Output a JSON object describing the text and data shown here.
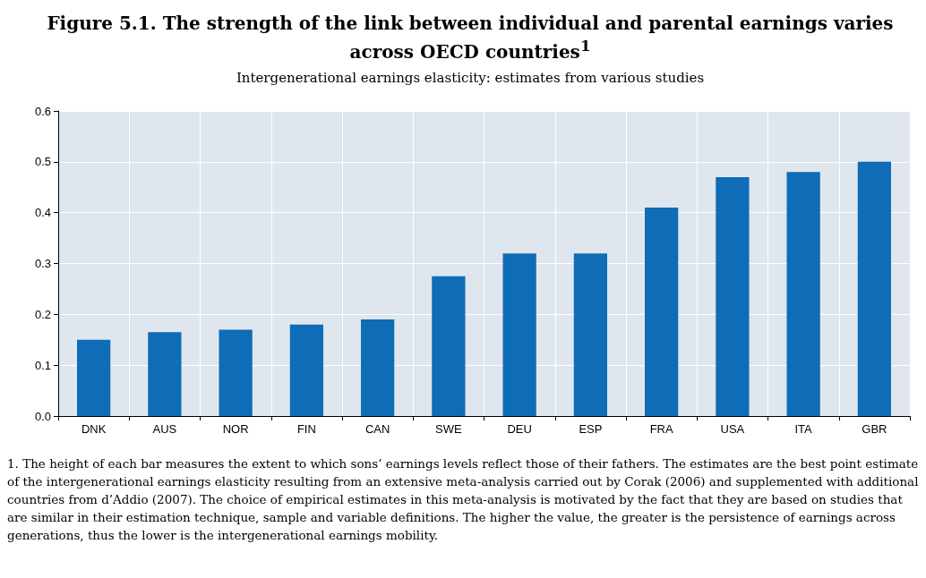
{
  "chart_data": {
    "type": "bar",
    "title": "Figure 5.1. The strength of the link between individual and parental earnings varies across OECD countries$^{1}$",
    "subtitle": "Intergenerational earnings elasticity: estimates from various studies",
    "categories": [
      "DNK",
      "AUS",
      "NOR",
      "FIN",
      "CAN",
      "SWE",
      "DEU",
      "ESP",
      "FRA",
      "USA",
      "ITA",
      "GBR"
    ],
    "values": [
      0.15,
      0.165,
      0.17,
      0.18,
      0.19,
      0.275,
      0.32,
      0.32,
      0.41,
      0.47,
      0.48,
      0.5
    ],
    "color": "#0f6cb6",
    "ylim": [
      0,
      0.6
    ],
    "yticks": [
      {
        "value": 0,
        "label": "0.0"
      },
      {
        "value": 0.1,
        "label": "0.1"
      },
      {
        "value": 0.2,
        "label": "0.2"
      },
      {
        "value": 0.3,
        "label": "0.3"
      },
      {
        "value": 0.4,
        "label": "0.4"
      },
      {
        "value": 0.5,
        "label": "0.5"
      },
      {
        "value": 0.6,
        "label": "0.6"
      }
    ],
    "grid": true,
    "annotations": [
      "1. The height of each bar measures the extent to which sons’ earnings levels reflect those of their fathers. The estimates are the best point estimate of the intergenerational earnings elasticity resulting from an extensive meta-analysis carried out by Corak (2006) and supplemented with additional countries from d’Addio (2007). The choice of empirical estimates in this meta-analysis is motivated by the fact that they are based on studies that are similar in their estimation technique, sample and variable definitions. The higher the value, the greater is the persistence of earnings across generations, thus the lower is the intergenerational earnings mobility."
    ]
  }
}
